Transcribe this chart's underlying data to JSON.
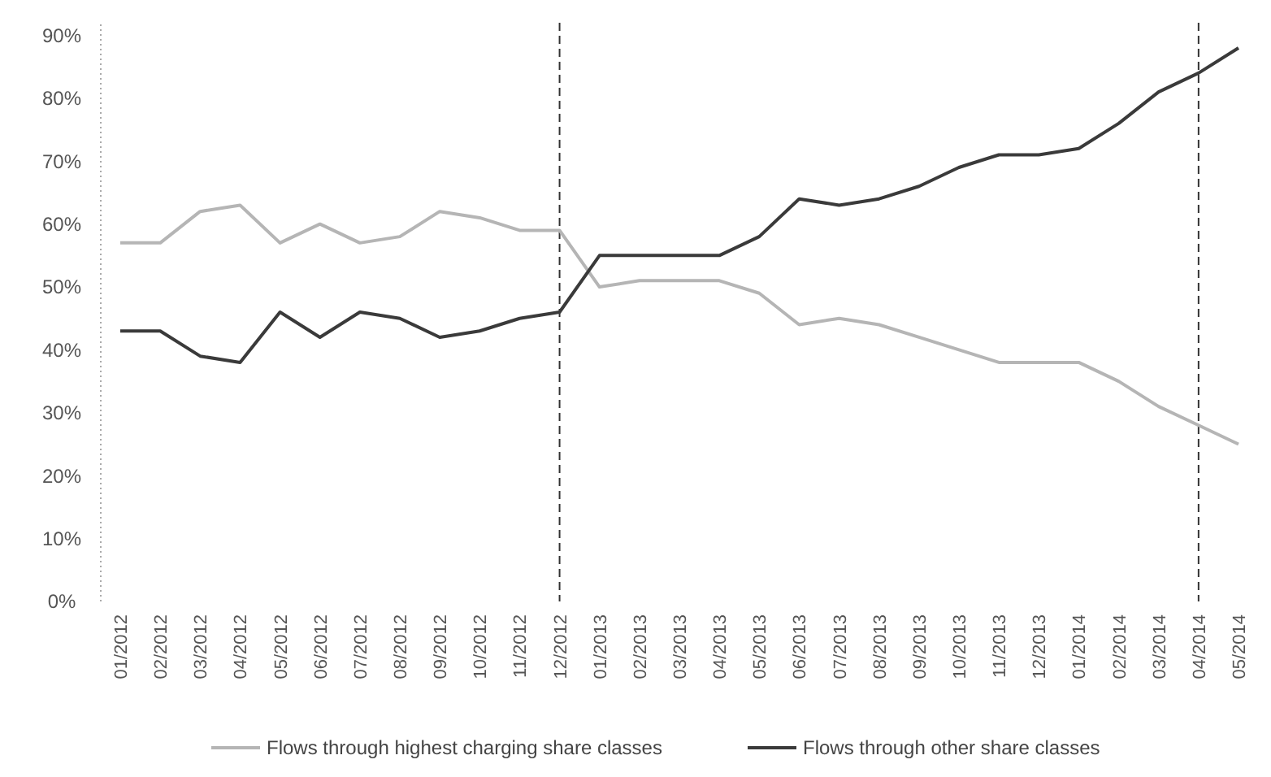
{
  "chart_data": {
    "type": "line",
    "categories": [
      "01/2012",
      "02/2012",
      "03/2012",
      "04/2012",
      "05/2012",
      "06/2012",
      "07/2012",
      "08/2012",
      "09/2012",
      "10/2012",
      "11/2012",
      "12/2012",
      "01/2013",
      "02/2013",
      "03/2013",
      "04/2013",
      "05/2013",
      "06/2013",
      "07/2013",
      "08/2013",
      "09/2013",
      "10/2013",
      "11/2013",
      "12/2013",
      "01/2014",
      "02/2014",
      "03/2014",
      "04/2014",
      "05/2014"
    ],
    "series": [
      {
        "name": "Flows through highest charging share classes",
        "color": "#b5b5b5",
        "values": [
          57,
          57,
          62,
          63,
          57,
          60,
          57,
          58,
          62,
          61,
          59,
          59,
          50,
          51,
          51,
          51,
          49,
          44,
          45,
          44,
          42,
          40,
          38,
          38,
          38,
          35,
          31,
          28,
          25
        ]
      },
      {
        "name": "Flows through other share classes",
        "color": "#3a3a3a",
        "values": [
          43,
          43,
          39,
          38,
          46,
          42,
          46,
          45,
          42,
          43,
          45,
          46,
          55,
          55,
          55,
          55,
          58,
          64,
          63,
          64,
          66,
          69,
          71,
          71,
          72,
          76,
          81,
          84,
          88
        ]
      }
    ],
    "ylim": [
      0,
      92
    ],
    "yticks": [
      {
        "value": 0,
        "label": "0%"
      },
      {
        "value": 10,
        "label": "10%"
      },
      {
        "value": 20,
        "label": "20%"
      },
      {
        "value": 30,
        "label": "30%"
      },
      {
        "value": 40,
        "label": "40%"
      },
      {
        "value": 50,
        "label": "50%"
      },
      {
        "value": 60,
        "label": "60%"
      },
      {
        "value": 70,
        "label": "70%"
      },
      {
        "value": 80,
        "label": "80%"
      },
      {
        "value": 90,
        "label": "90%"
      }
    ],
    "ref_lines": [
      {
        "axis": "x",
        "value": "12/2012",
        "color": "#333333",
        "line_style": "dashed"
      },
      {
        "axis": "x",
        "value": "04/2014",
        "color": "#333333",
        "line_style": "dashed"
      }
    ],
    "legend": "bottom",
    "grid": false,
    "marker": "none",
    "line_style": "solid"
  }
}
